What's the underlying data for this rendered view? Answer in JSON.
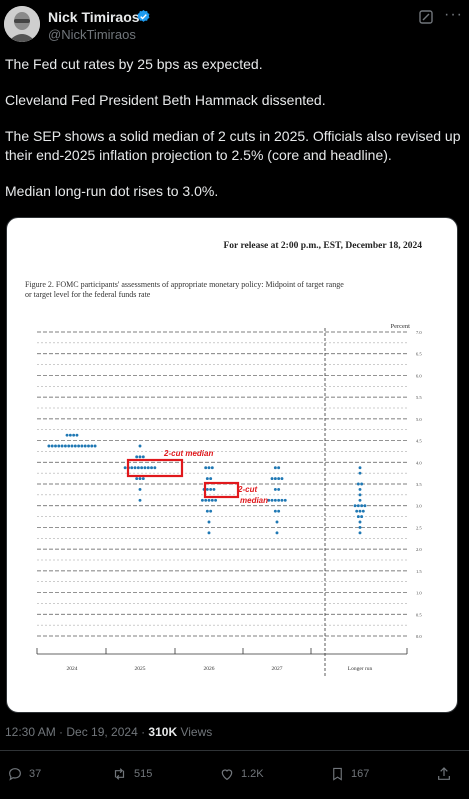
{
  "author": {
    "name": "Nick Timiraos",
    "handle": "@NickTimiraos"
  },
  "tweet": {
    "paragraphs": [
      "The Fed cut rates by 25 bps as expected.",
      "Cleveland Fed President Beth Hammack dissented.",
      "The SEP shows a solid median of 2 cuts in 2025. Officials also revised up their end-2025 inflation projection to 2.5% (core and headline).",
      "Median long-run dot rises to 3.0%."
    ]
  },
  "image": {
    "release_line": "For release at 2:00 p.m., EST, December 18, 2024",
    "figure_title_line1": "Figure 2.  FOMC participants' assessments of appropriate monetary policy:  Midpoint of target range",
    "figure_title_line2": "or target level for the federal funds rate",
    "annotation_2025": "2-cut median",
    "annotation_2026_line1": "2-cut",
    "annotation_2026_line2": "median"
  },
  "chart_data": {
    "type": "scatter",
    "ylabel": "Percent",
    "ylim": [
      0,
      7
    ],
    "y_ticks": [
      "7.0",
      "6.5",
      "6.0",
      "5.5",
      "5.0",
      "4.5",
      "4.0",
      "3.5",
      "3.0",
      "2.5",
      "2.0",
      "1.5",
      "1.0",
      "0.5",
      "0.0"
    ],
    "categories": [
      "2024",
      "2025",
      "2026",
      "2027",
      "Longer run"
    ],
    "dots": {
      "2024": [
        {
          "rate": 4.625,
          "count": 4
        },
        {
          "rate": 4.375,
          "count": 15
        }
      ],
      "2025": [
        {
          "rate": 4.375,
          "count": 1
        },
        {
          "rate": 4.125,
          "count": 3
        },
        {
          "rate": 3.875,
          "count": 10
        },
        {
          "rate": 3.625,
          "count": 3
        },
        {
          "rate": 3.375,
          "count": 1
        },
        {
          "rate": 3.125,
          "count": 1
        }
      ],
      "2026": [
        {
          "rate": 3.875,
          "count": 3
        },
        {
          "rate": 3.625,
          "count": 2
        },
        {
          "rate": 3.375,
          "count": 4
        },
        {
          "rate": 3.125,
          "count": 5
        },
        {
          "rate": 2.875,
          "count": 2
        },
        {
          "rate": 2.625,
          "count": 1
        },
        {
          "rate": 2.375,
          "count": 1
        }
      ],
      "2027": [
        {
          "rate": 3.875,
          "count": 2
        },
        {
          "rate": 3.625,
          "count": 4
        },
        {
          "rate": 3.375,
          "count": 2
        },
        {
          "rate": 3.125,
          "count": 6
        },
        {
          "rate": 2.875,
          "count": 2
        },
        {
          "rate": 2.625,
          "count": 1
        },
        {
          "rate": 2.375,
          "count": 1
        }
      ],
      "Longer run": [
        {
          "rate": 3.875,
          "count": 1
        },
        {
          "rate": 3.75,
          "count": 1
        },
        {
          "rate": 3.5,
          "count": 2
        },
        {
          "rate": 3.375,
          "count": 1
        },
        {
          "rate": 3.25,
          "count": 1
        },
        {
          "rate": 3.125,
          "count": 1
        },
        {
          "rate": 3.0,
          "count": 4
        },
        {
          "rate": 2.875,
          "count": 3
        },
        {
          "rate": 2.75,
          "count": 2
        },
        {
          "rate": 2.625,
          "count": 1
        },
        {
          "rate": 2.5,
          "count": 1
        },
        {
          "rate": 2.375,
          "count": 1
        }
      ]
    },
    "dot_color": "#1f78b4",
    "highlight_color": "#e0181c"
  },
  "meta": {
    "time": "12:30 AM · Dec 19, 2024 · ",
    "views_count": "310K",
    "views_label": " Views"
  },
  "actions": {
    "replies": "37",
    "reposts": "515",
    "likes": "1.2K",
    "bookmarks": "167"
  },
  "colors": {
    "background": "#000000",
    "text": "#e7e9ea",
    "muted": "#71767b",
    "verified": "#1d9bf0"
  }
}
